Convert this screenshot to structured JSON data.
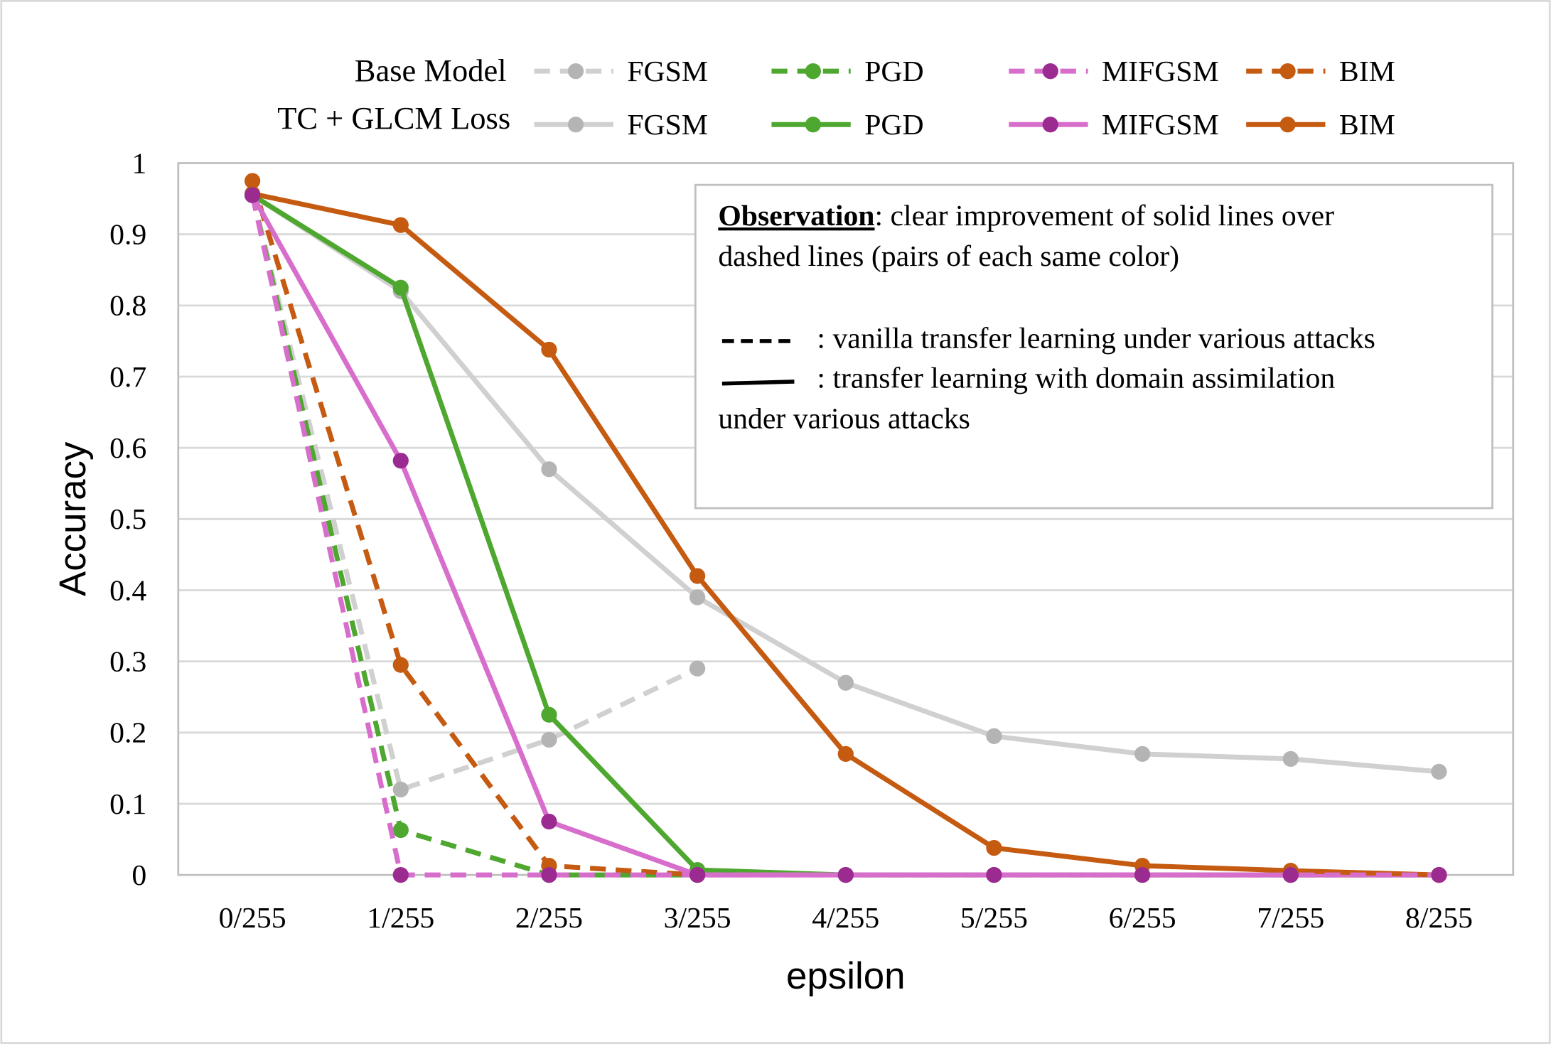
{
  "chart_data": {
    "type": "line",
    "xlabel": "epsilon",
    "ylabel": "Accuracy",
    "categories": [
      "0/255",
      "1/255",
      "2/255",
      "3/255",
      "4/255",
      "5/255",
      "6/255",
      "7/255",
      "8/255"
    ],
    "ylim": [
      0,
      1
    ],
    "yticks": [
      "0",
      "0.1",
      "0.2",
      "0.3",
      "0.4",
      "0.5",
      "0.6",
      "0.7",
      "0.8",
      "0.9",
      "1"
    ],
    "grid": true,
    "legend_position": "top",
    "legend_rows": [
      "Base Model",
      "TC + GLCM Loss"
    ],
    "series": [
      {
        "name": "FGSM",
        "group": "Base Model",
        "style": "dashed",
        "color": "#d0d0d0",
        "marker_color": "#b4b4b4",
        "values": [
          0.955,
          0.12,
          0.19,
          0.29,
          null,
          null,
          null,
          null,
          null
        ]
      },
      {
        "name": "PGD",
        "group": "Base Model",
        "style": "dashed",
        "color": "#4ea72e",
        "marker_color": "#4ea72e",
        "values": [
          0.955,
          0.063,
          0.0,
          0.0,
          null,
          null,
          null,
          null,
          null
        ]
      },
      {
        "name": "MIFGSM",
        "group": "Base Model",
        "style": "dashed",
        "color": "#d86ecc",
        "marker_color": "#9b2b91",
        "values": [
          0.955,
          0.0,
          0.0,
          0.0,
          0.0,
          0.0,
          0.0,
          0.0,
          0.0
        ]
      },
      {
        "name": "BIM",
        "group": "Base Model",
        "style": "dashed",
        "color": "#c55a11",
        "marker_color": "#c55a11",
        "values": [
          0.975,
          0.295,
          0.013,
          0.0,
          null,
          null,
          null,
          null,
          null
        ]
      },
      {
        "name": "FGSM",
        "group": "TC + GLCM Loss",
        "style": "solid",
        "color": "#d0d0d0",
        "marker_color": "#b4b4b4",
        "values": [
          0.955,
          0.82,
          0.57,
          0.39,
          0.27,
          0.195,
          0.17,
          0.163,
          0.145
        ]
      },
      {
        "name": "PGD",
        "group": "TC + GLCM Loss",
        "style": "solid",
        "color": "#4ea72e",
        "marker_color": "#4ea72e",
        "values": [
          0.955,
          0.825,
          0.225,
          0.007,
          0.0,
          0.0,
          0.0,
          0.0,
          0.0
        ]
      },
      {
        "name": "MIFGSM",
        "group": "TC + GLCM Loss",
        "style": "solid",
        "color": "#d86ecc",
        "marker_color": "#9b2b91",
        "values": [
          0.955,
          0.582,
          0.075,
          0.0,
          0.0,
          0.0,
          0.0,
          0.0,
          0.0
        ]
      },
      {
        "name": "BIM",
        "group": "TC + GLCM Loss",
        "style": "solid",
        "color": "#c55a11",
        "marker_color": "#c55a11",
        "values": [
          0.957,
          0.913,
          0.738,
          0.42,
          0.17,
          0.038,
          0.013,
          0.006,
          0.0
        ]
      }
    ],
    "annotation": {
      "heading": "Observation",
      "line1": ": clear improvement of solid lines over",
      "line2": "dashed lines (pairs of each same color)",
      "dashed_text": ": vanilla transfer learning under various attacks",
      "solid_text": ": transfer learning with domain assimilation",
      "solid_text_cont": "under various attacks"
    }
  }
}
